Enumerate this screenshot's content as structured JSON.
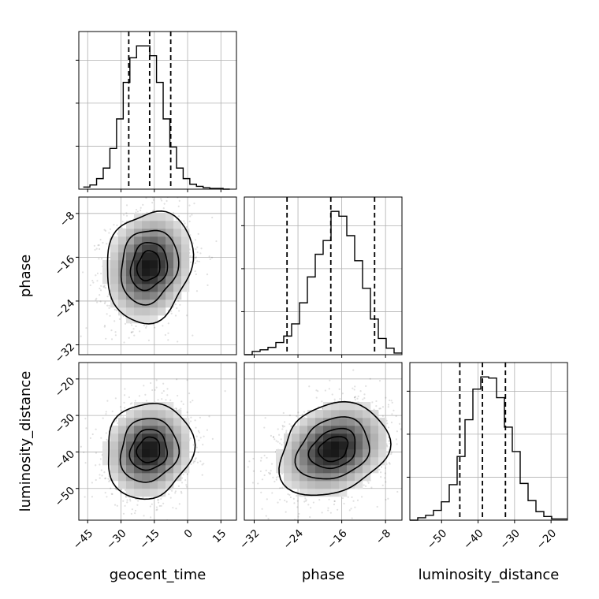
{
  "chart_data": {
    "type": "corner",
    "parameters": [
      "geocent_time",
      "phase",
      "luminosity_distance"
    ],
    "axis_labels": {
      "x": [
        "geocent_time",
        "phase",
        "luminosity_distance"
      ],
      "y": [
        "phase",
        "luminosity_distance"
      ]
    },
    "ranges": {
      "geocent_time": [
        -49,
        22
      ],
      "phase": [
        -33.8,
        -5.0
      ],
      "luminosity_distance": [
        -58.7,
        -15.5
      ]
    },
    "ticks": {
      "geocent_time": [
        -45,
        -30,
        -15,
        0,
        15
      ],
      "phase": [
        -32,
        -24,
        -16,
        -8
      ],
      "luminosity_distance": [
        -50,
        -40,
        -30,
        -20
      ]
    },
    "marginals": [
      {
        "parameter": "geocent_time",
        "quantile_lines": [
          -26.5,
          -17.1,
          -7.6
        ],
        "bin_edges": [
          -47,
          -44,
          -41,
          -38,
          -35,
          -32,
          -29,
          -26,
          -23,
          -20,
          -17,
          -14,
          -11,
          -8,
          -5,
          -2,
          1,
          4,
          7,
          10,
          13,
          16,
          19
        ],
        "counts": [
          3,
          6,
          15,
          30,
          58,
          100,
          152,
          187,
          204,
          204,
          190,
          152,
          100,
          60,
          30,
          15,
          7,
          4,
          2,
          1,
          1,
          0
        ]
      },
      {
        "parameter": "phase",
        "quantile_lines": [
          -26.0,
          -18.0,
          -10.0
        ],
        "bin_edges": [
          -33.8,
          -32.36,
          -30.92,
          -29.48,
          -28.04,
          -26.6,
          -25.16,
          -23.72,
          -22.28,
          -20.84,
          -19.4,
          -17.96,
          -16.52,
          -15.08,
          -13.64,
          -12.2,
          -10.76,
          -9.32,
          -7.88,
          -6.44,
          -5.0
        ],
        "counts": [
          0,
          4,
          6,
          9,
          15,
          23,
          38,
          64,
          96,
          124,
          141,
          177,
          171,
          147,
          116,
          82,
          44,
          20,
          8,
          2
        ]
      },
      {
        "parameter": "luminosity_distance",
        "quantile_lines": [
          -45.0,
          -38.8,
          -32.5
        ],
        "bin_edges": [
          -58.7,
          -56.54,
          -54.38,
          -52.22,
          -50.06,
          -47.9,
          -45.74,
          -43.58,
          -41.42,
          -39.26,
          -37.1,
          -34.94,
          -32.78,
          -30.62,
          -28.46,
          -26.3,
          -24.14,
          -21.98,
          -19.82,
          -17.66,
          -15.5
        ],
        "counts": [
          0,
          2,
          4,
          8,
          15,
          29,
          52,
          82,
          107,
          117,
          116,
          100,
          76,
          56,
          30,
          16,
          7,
          3,
          1,
          1
        ]
      }
    ],
    "joint": [
      {
        "x": "geocent_time",
        "y": "phase",
        "center": [
          -17.5,
          -17.6
        ],
        "spread": [
          9.5,
          5.0
        ],
        "correlation": 0.15
      },
      {
        "x": "geocent_time",
        "y": "luminosity_distance",
        "center": [
          -17.5,
          -39.5
        ],
        "spread": [
          9.5,
          6.4
        ],
        "correlation": 0.1
      },
      {
        "x": "phase",
        "y": "luminosity_distance",
        "center": [
          -17.5,
          -39.2
        ],
        "spread": [
          5.0,
          6.4
        ],
        "correlation": 0.25
      }
    ],
    "contour_levels": [
      0.12,
      0.39,
      0.68,
      0.86
    ],
    "grid": true,
    "legend": "none"
  }
}
